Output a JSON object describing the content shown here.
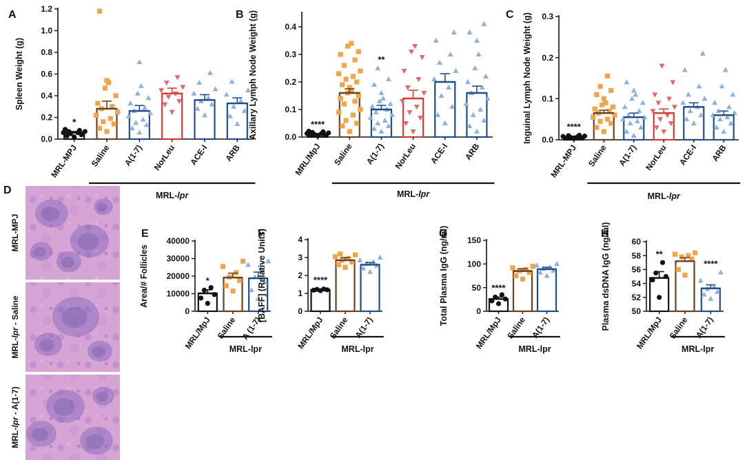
{
  "colors": {
    "black": "#111111",
    "orange": "#F0A54B",
    "blue": "#1F4E8C",
    "lightblue": "#8FB1DB",
    "red": "#D63B35",
    "lightred": "#E26A66",
    "gray": "#9A9A9A",
    "lightgray": "#B5B5B5",
    "brown": "#6E3F1F",
    "lightbrown": "#A0522D"
  },
  "panel_d": {
    "letter": "D",
    "labels": [
      {
        "pre": "MRL-MPJ",
        "italic": "",
        "post": ""
      },
      {
        "pre": "MRL-",
        "italic": "lpr",
        "post": " - Saline"
      },
      {
        "pre": "MRL-",
        "italic": "lpr",
        "post": " - A(1-7)"
      }
    ]
  },
  "chart_data": [
    {
      "id": "A",
      "letter": "A",
      "type": "bar",
      "ylabel": "Spleen Weight (g)",
      "ylim": [
        0,
        1.2
      ],
      "yticks": [
        "0.0",
        "0.2",
        "0.4",
        "0.6",
        "0.8",
        "1.0",
        "1.2"
      ],
      "ytick_values": [
        0,
        0.2,
        0.4,
        0.6,
        0.8,
        1.0,
        1.2
      ],
      "categories": [
        "MRL-MPJ",
        "Saline",
        "A(1-7)",
        "NorLeu",
        "ACE-I",
        "ARB"
      ],
      "group_label": {
        "pre": "MRL-",
        "italic": "lpr"
      },
      "values": [
        0.06,
        0.28,
        0.26,
        0.42,
        0.36,
        0.33
      ],
      "errors": [
        0.01,
        0.07,
        0.05,
        0.05,
        0.05,
        0.05
      ],
      "stars": [
        "*",
        "",
        "",
        "",
        "",
        ""
      ],
      "points": [
        [
          0.02,
          0.03,
          0.04,
          0.05,
          0.06,
          0.06,
          0.07,
          0.07,
          0.08,
          0.09
        ],
        [
          0.07,
          0.1,
          0.14,
          0.16,
          0.19,
          0.22,
          0.25,
          0.28,
          0.3,
          0.33,
          0.4,
          0.47,
          0.52,
          0.54,
          1.18
        ],
        [
          0.06,
          0.1,
          0.13,
          0.15,
          0.18,
          0.21,
          0.24,
          0.26,
          0.29,
          0.33,
          0.38,
          0.42,
          0.49,
          0.71
        ],
        [
          0.25,
          0.32,
          0.35,
          0.39,
          0.42,
          0.45,
          0.48,
          0.52,
          0.57
        ],
        [
          0.22,
          0.28,
          0.32,
          0.35,
          0.38,
          0.42,
          0.46,
          0.52,
          0.61
        ],
        [
          0.14,
          0.21,
          0.26,
          0.3,
          0.35,
          0.41,
          0.45,
          0.53
        ]
      ]
    },
    {
      "id": "B",
      "letter": "B",
      "type": "bar",
      "ylabel": "Axillary Lymph Node Weight (g)",
      "ylim": [
        0,
        0.45
      ],
      "yticks": [
        "0.0",
        "0.1",
        "0.2",
        "0.3",
        "0.4"
      ],
      "ytick_values": [
        0,
        0.1,
        0.2,
        0.3,
        0.4
      ],
      "categories": [
        "MRL/MpJ",
        "Saline",
        "A(1-7)",
        "NorLeu",
        "ACE-I",
        "ARB"
      ],
      "group_label": {
        "pre": "MRL-",
        "italic": "lpr"
      },
      "values": [
        0.01,
        0.16,
        0.1,
        0.14,
        0.2,
        0.16
      ],
      "errors": [
        0.003,
        0.015,
        0.015,
        0.03,
        0.03,
        0.025
      ],
      "stars": [
        "****",
        "",
        "**",
        "",
        "",
        ""
      ],
      "points": [
        [
          0.004,
          0.006,
          0.008,
          0.01,
          0.012,
          0.013,
          0.015,
          0.017,
          0.019,
          0.021
        ],
        [
          0.02,
          0.04,
          0.05,
          0.06,
          0.08,
          0.09,
          0.1,
          0.12,
          0.13,
          0.14,
          0.15,
          0.16,
          0.17,
          0.18,
          0.19,
          0.2,
          0.21,
          0.22,
          0.23,
          0.24,
          0.26,
          0.28,
          0.3,
          0.31,
          0.33,
          0.34
        ],
        [
          0.02,
          0.03,
          0.04,
          0.05,
          0.06,
          0.07,
          0.08,
          0.09,
          0.1,
          0.11,
          0.12,
          0.13,
          0.14,
          0.16,
          0.19,
          0.21,
          0.25
        ],
        [
          0.02,
          0.05,
          0.07,
          0.09,
          0.11,
          0.13,
          0.16,
          0.18,
          0.21,
          0.24,
          0.29,
          0.31,
          0.33
        ],
        [
          0.05,
          0.08,
          0.11,
          0.15,
          0.18,
          0.21,
          0.24,
          0.27,
          0.3,
          0.35,
          0.38
        ],
        [
          0.02,
          0.04,
          0.06,
          0.08,
          0.1,
          0.12,
          0.14,
          0.16,
          0.18,
          0.2,
          0.22,
          0.25,
          0.3,
          0.35,
          0.38,
          0.41
        ]
      ]
    },
    {
      "id": "C",
      "letter": "C",
      "type": "bar",
      "ylabel": "Inguinal Lymph Node Weight (g)",
      "ylim": [
        0,
        0.3
      ],
      "yticks": [
        "0.0",
        "0.1",
        "0.2",
        "0.3"
      ],
      "ytick_values": [
        0,
        0.1,
        0.2,
        0.3
      ],
      "categories": [
        "MRL-MPJ",
        "Saline",
        "A(1-7)",
        "NorLeu",
        "ACE-I",
        "ARB"
      ],
      "group_label": {
        "pre": "MRL-",
        "italic": "lpr"
      },
      "values": [
        0.007,
        0.065,
        0.055,
        0.065,
        0.08,
        0.06
      ],
      "errors": [
        0.002,
        0.007,
        0.01,
        0.01,
        0.01,
        0.01
      ],
      "stars": [
        "****",
        "",
        "",
        "",
        "",
        ""
      ],
      "points": [
        [
          0.003,
          0.004,
          0.005,
          0.006,
          0.007,
          0.008,
          0.009,
          0.01,
          0.011
        ],
        [
          0.02,
          0.03,
          0.04,
          0.045,
          0.05,
          0.055,
          0.06,
          0.065,
          0.07,
          0.075,
          0.08,
          0.085,
          0.09,
          0.1,
          0.11,
          0.12,
          0.13,
          0.155
        ],
        [
          0.01,
          0.02,
          0.03,
          0.04,
          0.045,
          0.05,
          0.055,
          0.06,
          0.07,
          0.08,
          0.09,
          0.1,
          0.11,
          0.12,
          0.14
        ],
        [
          0.02,
          0.03,
          0.04,
          0.05,
          0.06,
          0.07,
          0.08,
          0.09,
          0.1,
          0.11,
          0.14,
          0.18
        ],
        [
          0.04,
          0.05,
          0.06,
          0.07,
          0.08,
          0.09,
          0.1,
          0.11,
          0.13,
          0.17,
          0.21
        ],
        [
          0.02,
          0.03,
          0.04,
          0.05,
          0.055,
          0.06,
          0.065,
          0.07,
          0.08,
          0.09,
          0.11,
          0.13,
          0.17
        ]
      ]
    },
    {
      "id": "E",
      "letter": "E",
      "type": "bar",
      "ylabel": "Area/# Follicles",
      "ylim": [
        0,
        40000
      ],
      "yticks": [
        "0",
        "10000",
        "20000",
        "30000",
        "40000"
      ],
      "ytick_values": [
        0,
        10000,
        20000,
        30000,
        40000
      ],
      "categories": [
        "MRL/MpJ",
        "Saline",
        "A (1-7)"
      ],
      "group_label": {
        "pre": "MRL-lpr",
        "italic": ""
      },
      "values": [
        10200,
        19200,
        18800
      ],
      "errors": [
        2000,
        2500,
        3500
      ],
      "stars": [
        "*",
        "",
        ""
      ],
      "points": [
        [
          4500,
          7500,
          9500,
          12000,
          13500
        ],
        [
          11500,
          14500,
          17500,
          19500,
          22000,
          25500,
          28500
        ],
        [
          7000,
          12000,
          16500,
          19500,
          24000,
          26500,
          28500
        ]
      ]
    },
    {
      "id": "F",
      "letter": "F",
      "type": "bar",
      "ylabel": "[BAFF] (Relative Units)",
      "ylim": [
        0,
        4
      ],
      "yticks": [
        "0",
        "1",
        "2",
        "3",
        "4"
      ],
      "ytick_values": [
        0,
        1,
        2,
        3,
        4
      ],
      "categories": [
        "MRL/MpJ",
        "Saline",
        "A(1-7)"
      ],
      "group_label": {
        "pre": "MRL-lpr",
        "italic": ""
      },
      "values": [
        1.2,
        2.85,
        2.6
      ],
      "errors": [
        0.03,
        0.15,
        0.12
      ],
      "stars": [
        "****",
        "",
        ""
      ],
      "points": [
        [
          1.15,
          1.18,
          1.2,
          1.22,
          1.24
        ],
        [
          2.45,
          2.6,
          2.75,
          2.85,
          2.95,
          3.05,
          3.15,
          3.2
        ],
        [
          2.2,
          2.4,
          2.55,
          2.65,
          2.75,
          2.85,
          3.0
        ]
      ]
    },
    {
      "id": "G",
      "letter": "G",
      "type": "bar",
      "ylabel": "Total Plasma IgG (ng/ml)",
      "ylim": [
        0,
        150
      ],
      "yticks": [
        "0",
        "50",
        "100",
        "150"
      ],
      "ytick_values": [
        0,
        50,
        100,
        150
      ],
      "categories": [
        "MRL/MpJ",
        "Saline",
        "A(1-7)"
      ],
      "group_label": {
        "pre": "MRL-lpr",
        "italic": ""
      },
      "values": [
        26,
        85,
        89
      ],
      "errors": [
        4,
        5,
        4
      ],
      "stars": [
        "****",
        "",
        ""
      ],
      "points": [
        [
          16,
          22,
          26,
          30,
          35
        ],
        [
          68,
          75,
          82,
          86,
          88,
          92,
          95
        ],
        [
          75,
          82,
          86,
          90,
          93,
          97,
          100
        ]
      ]
    },
    {
      "id": "H",
      "letter": "H",
      "type": "bar",
      "ylabel": "Plasma dsDNA IgG (ng/ml)",
      "ylim": [
        50,
        60
      ],
      "yticks": [
        "50",
        "52",
        "54",
        "56",
        "58",
        "60"
      ],
      "ytick_values": [
        50,
        52,
        54,
        56,
        58,
        60
      ],
      "categories": [
        "MRL/MpJ",
        "Saline",
        "A(1-7)"
      ],
      "group_label": {
        "pre": "MRL-lpr",
        "italic": ""
      },
      "values": [
        54.8,
        57.2,
        53.3
      ],
      "errors": [
        0.9,
        0.5,
        0.5
      ],
      "stars": [
        "**",
        "",
        "****"
      ],
      "points": [
        [
          52.0,
          54.5,
          55.0,
          55.5,
          57.0
        ],
        [
          55.2,
          56.0,
          57.5,
          57.8,
          58.0,
          58.2,
          58.4
        ],
        [
          51.8,
          52.4,
          52.8,
          53.2,
          53.5,
          54.4,
          55.6
        ]
      ]
    }
  ]
}
